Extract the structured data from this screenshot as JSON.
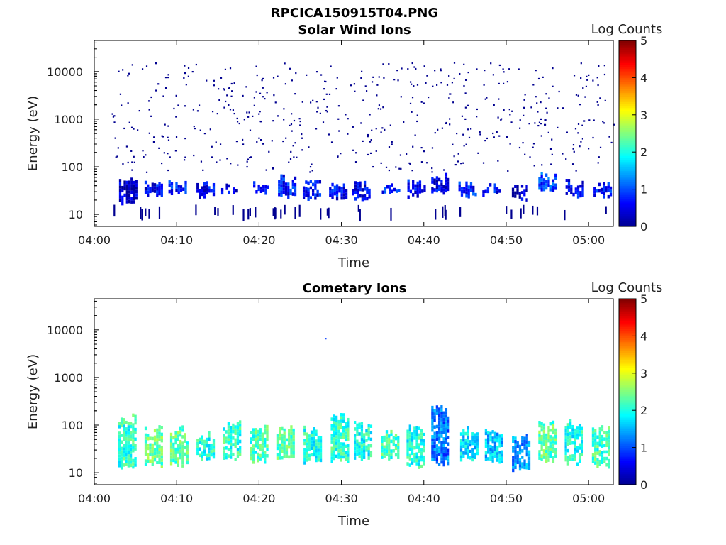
{
  "figure": {
    "title": "RPCICA150915T04.PNG"
  },
  "chart_data": [
    {
      "type": "heatmap",
      "title": "Solar Wind Ions",
      "xlabel": "Time",
      "ylabel": "Energy (eV)",
      "x_ticks": [
        "04:00",
        "04:10",
        "04:20",
        "04:30",
        "04:40",
        "04:50",
        "05:00"
      ],
      "y_ticks": [
        "10",
        "100",
        "1000",
        "10000"
      ],
      "ylim": [
        5.6,
        45000
      ],
      "y_scale": "log",
      "colorbar": {
        "label": "Log Counts",
        "ticks": [
          "0",
          "1",
          "2",
          "3",
          "4",
          "5"
        ],
        "range": [
          0,
          5
        ]
      },
      "colormap": [
        "#00008f",
        "#0000ff",
        "#0080ff",
        "#00ffff",
        "#80ff80",
        "#ffff00",
        "#ff8000",
        "#ff0000",
        "#800000"
      ],
      "sweeps": [
        {
          "t": 4.1,
          "lo": 18,
          "hi": 50,
          "v": 0.3
        },
        {
          "t": 7.2,
          "lo": 25,
          "hi": 45,
          "v": 0.55
        },
        {
          "t": 10.1,
          "lo": 28,
          "hi": 45,
          "v": 0.75
        },
        {
          "t": 13.5,
          "lo": 25,
          "hi": 45,
          "v": 0.6
        },
        {
          "t": 16.5,
          "lo": 30,
          "hi": 40,
          "v": 0.5
        },
        {
          "t": 20.1,
          "lo": 28,
          "hi": 45,
          "v": 0.8
        },
        {
          "t": 23.4,
          "lo": 25,
          "hi": 60,
          "v": 0.7
        },
        {
          "t": 26.4,
          "lo": 22,
          "hi": 55,
          "v": 0.6
        },
        {
          "t": 29.6,
          "lo": 22,
          "hi": 45,
          "v": 0.6
        },
        {
          "t": 32.4,
          "lo": 22,
          "hi": 45,
          "v": 0.55
        },
        {
          "t": 36.0,
          "lo": 28,
          "hi": 40,
          "v": 0.8
        },
        {
          "t": 39.1,
          "lo": 25,
          "hi": 45,
          "v": 0.6
        },
        {
          "t": 42.0,
          "lo": 28,
          "hi": 60,
          "v": 0.5
        },
        {
          "t": 45.3,
          "lo": 25,
          "hi": 45,
          "v": 0.7
        },
        {
          "t": 48.2,
          "lo": 25,
          "hi": 40,
          "v": 0.65
        },
        {
          "t": 51.5,
          "lo": 20,
          "hi": 40,
          "v": 0.35
        },
        {
          "t": 55.0,
          "lo": 30,
          "hi": 70,
          "v": 0.9
        },
        {
          "t": 58.3,
          "lo": 25,
          "hi": 45,
          "v": 0.6
        },
        {
          "t": 61.7,
          "lo": 25,
          "hi": 45,
          "v": 0.75
        }
      ]
    },
    {
      "type": "heatmap",
      "title": "Cometary Ions",
      "xlabel": "Time",
      "ylabel": "Energy (eV)",
      "x_ticks": [
        "04:00",
        "04:10",
        "04:20",
        "04:30",
        "04:40",
        "04:50",
        "05:00"
      ],
      "y_ticks": [
        "10",
        "100",
        "1000",
        "10000"
      ],
      "ylim": [
        5.6,
        45000
      ],
      "y_scale": "log",
      "colorbar": {
        "label": "Log Counts",
        "ticks": [
          "0",
          "1",
          "2",
          "3",
          "4",
          "5"
        ],
        "range": [
          0,
          5
        ]
      },
      "colormap": [
        "#00008f",
        "#0000ff",
        "#0080ff",
        "#00ffff",
        "#80ff80",
        "#ffff00",
        "#ff8000",
        "#ff0000",
        "#800000"
      ],
      "sweeps": [
        {
          "t": 4.0,
          "lo": 12,
          "hi": 150,
          "v": 2.1
        },
        {
          "t": 7.2,
          "lo": 14,
          "hi": 90,
          "v": 2.4
        },
        {
          "t": 10.3,
          "lo": 15,
          "hi": 80,
          "v": 2.3
        },
        {
          "t": 13.5,
          "lo": 20,
          "hi": 60,
          "v": 2.0
        },
        {
          "t": 16.7,
          "lo": 20,
          "hi": 110,
          "v": 2.1
        },
        {
          "t": 20.0,
          "lo": 18,
          "hi": 90,
          "v": 2.2
        },
        {
          "t": 23.2,
          "lo": 18,
          "hi": 90,
          "v": 2.3
        },
        {
          "t": 26.5,
          "lo": 16,
          "hi": 85,
          "v": 2.0
        },
        {
          "t": 29.8,
          "lo": 18,
          "hi": 180,
          "v": 2.1
        },
        {
          "t": 32.6,
          "lo": 18,
          "hi": 100,
          "v": 2.0
        },
        {
          "t": 35.9,
          "lo": 20,
          "hi": 70,
          "v": 2.2
        },
        {
          "t": 39.0,
          "lo": 14,
          "hi": 90,
          "v": 2.0
        },
        {
          "t": 42.0,
          "lo": 14,
          "hi": 210,
          "v": 1.2
        },
        {
          "t": 45.5,
          "lo": 18,
          "hi": 90,
          "v": 1.7
        },
        {
          "t": 48.5,
          "lo": 18,
          "hi": 80,
          "v": 1.6
        },
        {
          "t": 51.8,
          "lo": 11,
          "hi": 60,
          "v": 1.4
        },
        {
          "t": 55.0,
          "lo": 18,
          "hi": 110,
          "v": 2.3
        },
        {
          "t": 58.2,
          "lo": 16,
          "hi": 110,
          "v": 2.0
        },
        {
          "t": 61.5,
          "lo": 14,
          "hi": 80,
          "v": 2.2
        }
      ]
    }
  ]
}
